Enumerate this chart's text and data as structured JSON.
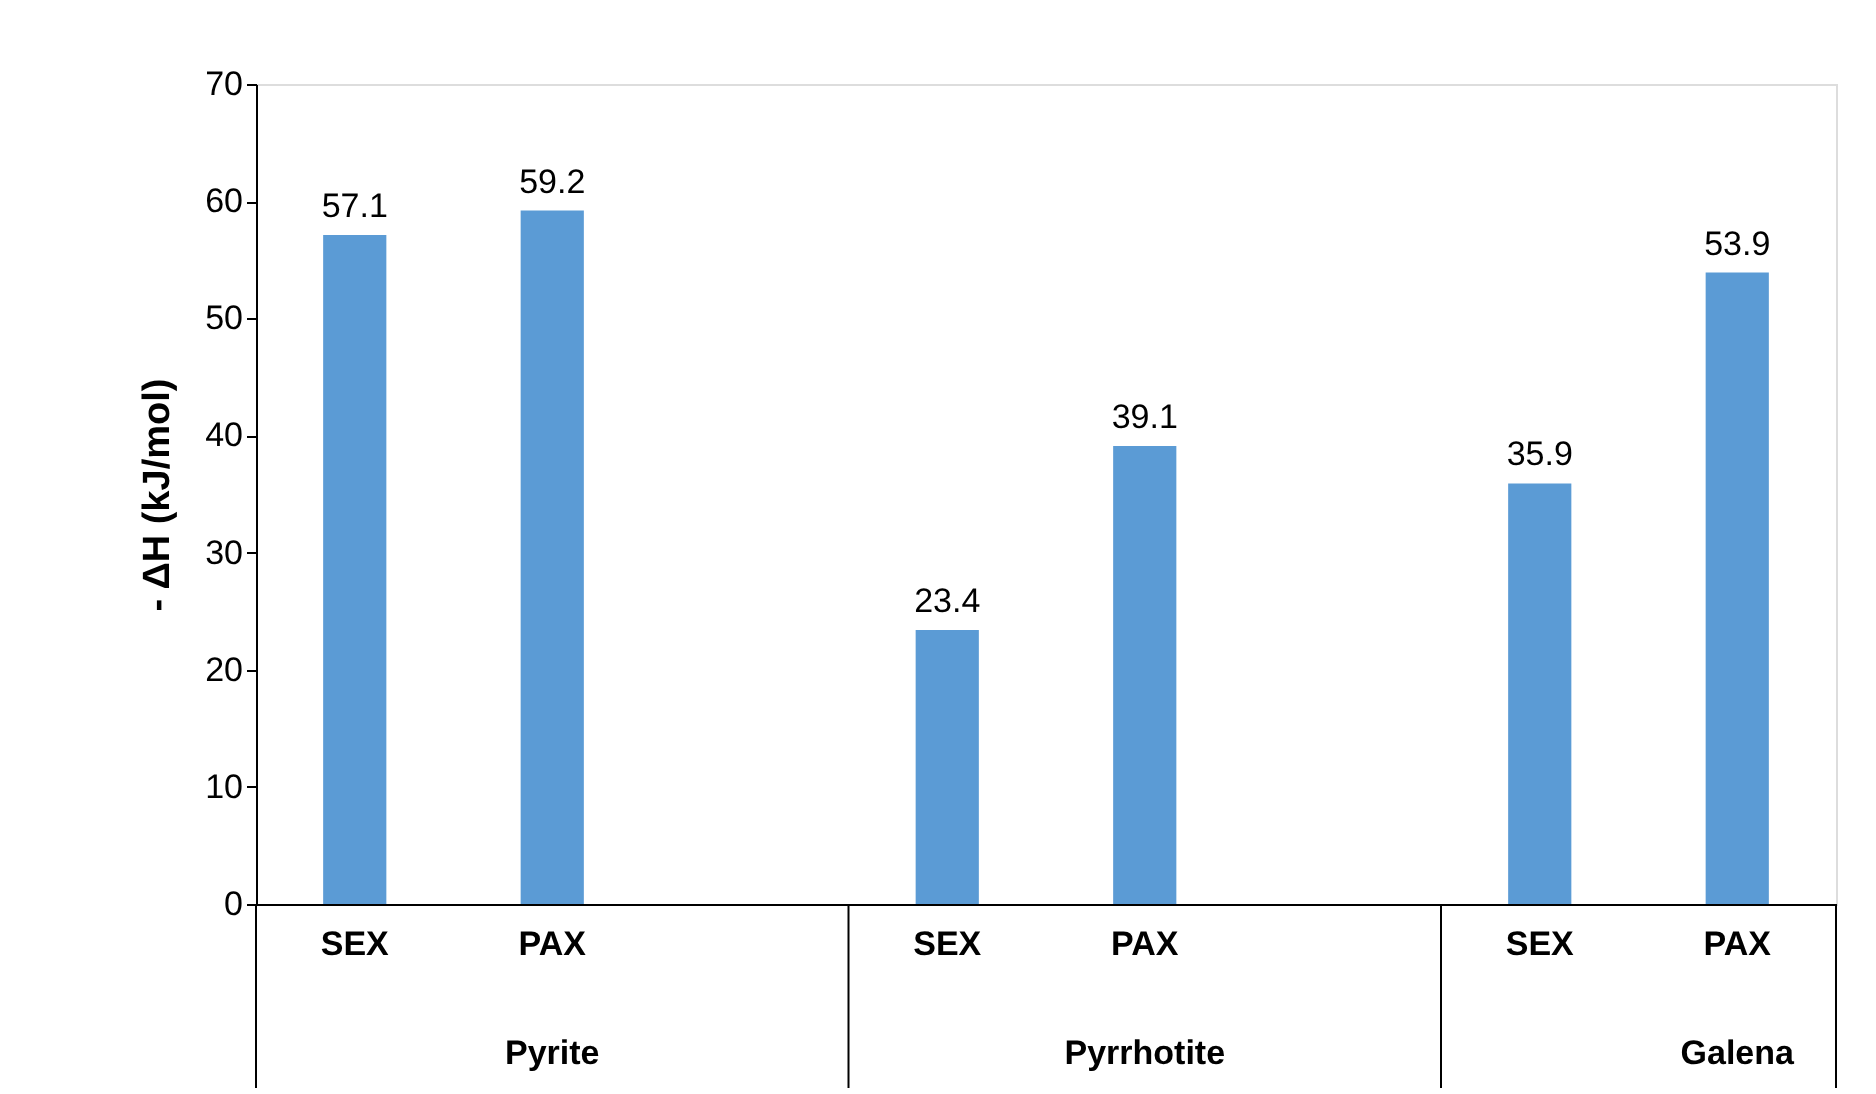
{
  "chart_data": {
    "type": "bar",
    "ylabel": "- ΔH (kJ/mol)",
    "categories": [
      "SEX",
      "PAX",
      null,
      "SEX",
      "PAX",
      null,
      "SEX",
      "PAX"
    ],
    "values": [
      57.1,
      59.2,
      null,
      23.4,
      39.1,
      null,
      35.9,
      53.9
    ],
    "color": "#5b9bd5",
    "annotations": [
      "Pyrite",
      "Pyrrhotite",
      "Galena"
    ],
    "ylim": [
      0,
      70
    ],
    "yticks": [
      0,
      10,
      20,
      30,
      40,
      50,
      60,
      70
    ],
    "data_labels": true,
    "grid": false
  }
}
